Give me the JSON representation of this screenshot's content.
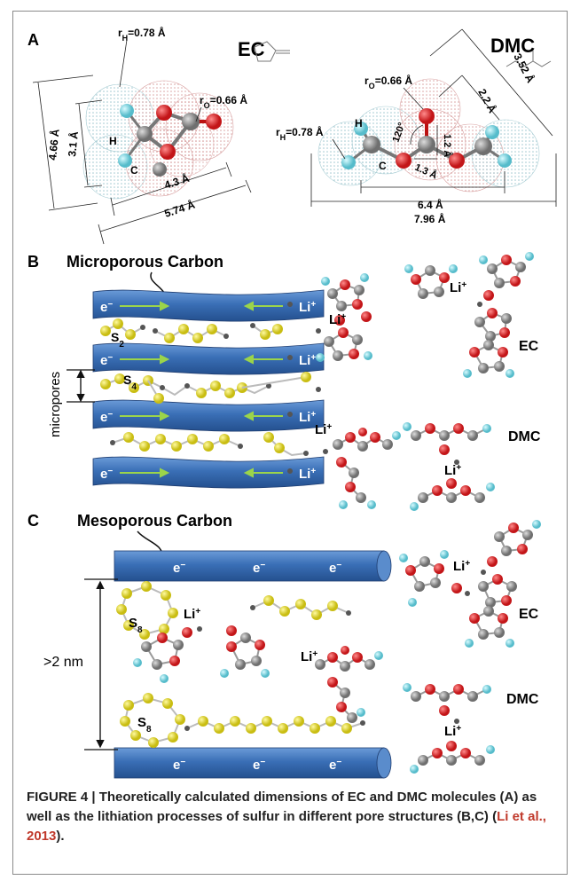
{
  "panels": {
    "A": {
      "letter": "A",
      "ec": {
        "name": "EC",
        "rH": "r",
        "rH_sub": "H",
        "rH_val": "=0.78 Å",
        "rO": "r",
        "rO_sub": "O",
        "rO_val": "=0.66 Å",
        "atom_h": "H",
        "atom_c": "C",
        "dims": [
          "4.66 Å",
          "3.1 Å",
          "4.3 Å",
          "5.74 Å"
        ]
      },
      "dmc": {
        "name": "DMC",
        "rO": "r",
        "rO_sub": "O",
        "rO_val": "=0.66 Å",
        "rH": "r",
        "rH_sub": "H",
        "rH_val": "=0.78 Å",
        "atom_h": "H",
        "atom_c": "C",
        "angle": "120°",
        "dims": [
          "3.52 Å",
          "2.2 Å",
          "1.2 Å",
          "1.3 Å",
          "6.4 Å",
          "7.96 Å"
        ]
      }
    },
    "B": {
      "letter": "B",
      "title": "Microporous Carbon",
      "electron": "e",
      "electron_sup": "−",
      "li": "Li",
      "li_sup": "+",
      "s2": "S",
      "s2_sub": "2",
      "s4": "S",
      "s4_sub": "4",
      "micropores": "micropores",
      "ec": "EC",
      "dmc": "DMC"
    },
    "C": {
      "letter": "C",
      "title": "Mesoporous Carbon",
      "electron": "e",
      "electron_sup": "−",
      "li": "Li",
      "li_sup": "+",
      "s8": "S",
      "s8_sub": "8",
      "gap": ">2 nm",
      "ec": "EC",
      "dmc": "DMC"
    }
  },
  "caption": {
    "figure": "FIGURE 4 | ",
    "text": "Theoretically calculated dimensions of EC and DMC molecules (A) as well as the lithiation processes of sulfur in different pore structures (B,C) (",
    "ref": "Li et al., 2013",
    "end": ")."
  },
  "colors": {
    "carbon_blue": "#3a6fb6",
    "sulfur_yellow": "#e8e02a",
    "oxygen_red": "#d8262a",
    "hydrogen_cyan": "#7fd6e0",
    "carbon_gray": "#888888"
  }
}
